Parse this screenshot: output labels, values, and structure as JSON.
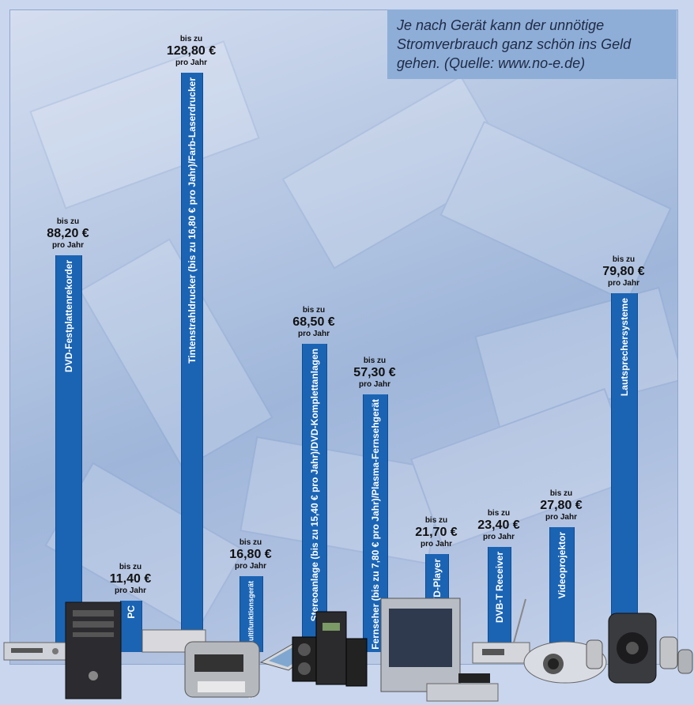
{
  "note": {
    "highlight": "Je nach Gerät",
    "text": " kann der unnötige Stromverbrauch ganz schön ins Geld gehen. (Quelle: www.no-e.de)"
  },
  "colors": {
    "bar": "#1b64b4",
    "background": "#c9d6ee",
    "note": "#8eaed8"
  },
  "chart_data": {
    "type": "bar",
    "unit": "€ pro Jahr",
    "categories": [
      "DVD-Festplattenrekorder",
      "PC",
      "Tintenstrahldrucker (bis zu 16,80 € pro Jahr)/Farb-Laserdrucker",
      "Scanner sowie Multifunktionsgerät",
      "Stereoanlage (bis zu 15,40 € pro Jahr)/DVD-Komplettanlagen",
      "Fernseher (bis zu 7,80 € pro Jahr)/Plasma-Fernsehgerät",
      "DVD-Player",
      "DVB-T Receiver",
      "Videoprojektor",
      "Lautsprechersysteme"
    ],
    "values": [
      88.2,
      11.4,
      128.8,
      16.8,
      68.5,
      57.3,
      21.7,
      23.4,
      27.8,
      79.8
    ],
    "value_labels": [
      "88,20 €",
      "11,40 €",
      "128,80 €",
      "16,80 €",
      "68,50 €",
      "57,30 €",
      "21,70 €",
      "23,40 €",
      "27,80 €",
      "79,80 €"
    ],
    "prefix": "bis zu",
    "suffix": "pro Jahr",
    "ylim": [
      0,
      130
    ]
  },
  "devices": [
    "dvd-recorder-icon",
    "pc-tower-icon",
    "printer-icon",
    "scanner-icon",
    "stereo-icon",
    "tv-icon",
    "dvb-receiver-icon",
    "projector-icon",
    "speaker-icon"
  ]
}
